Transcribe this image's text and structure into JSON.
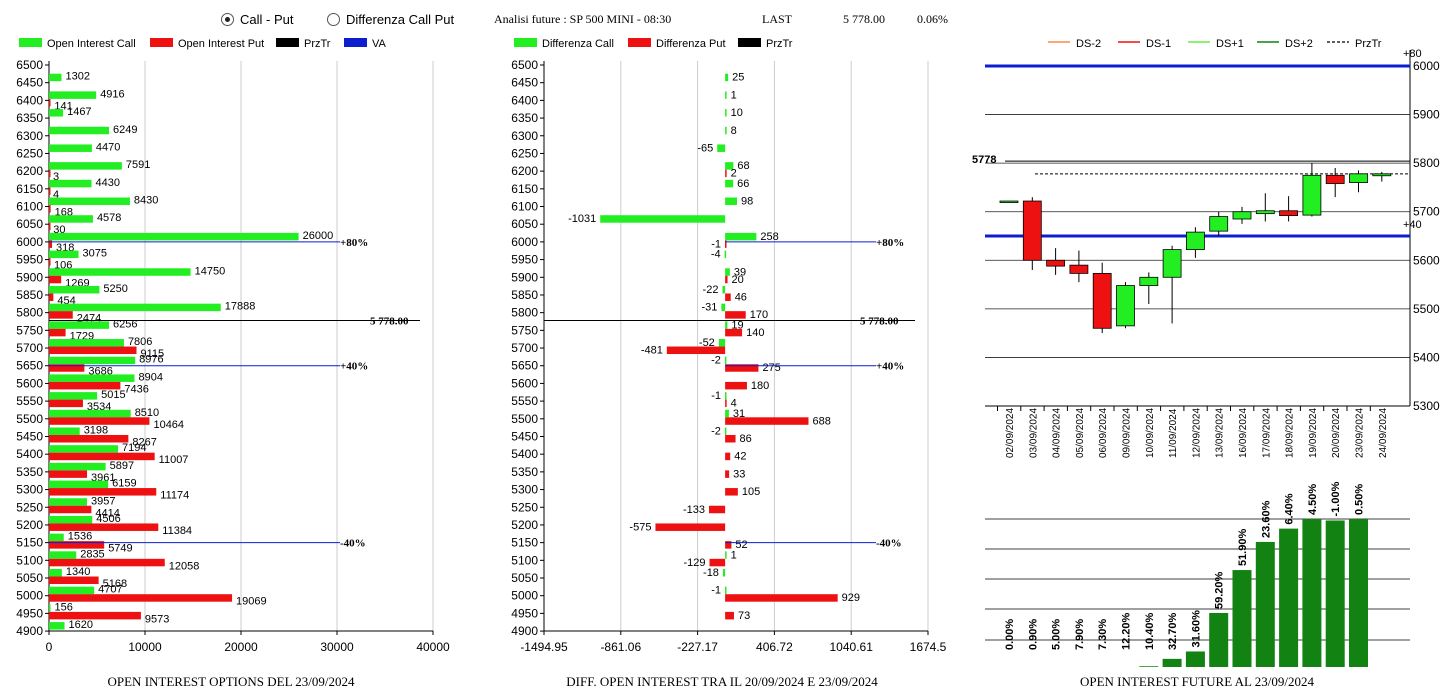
{
  "controls": {
    "radio_call_put": "Call - Put",
    "radio_diff": "Differenza Call Put",
    "title": "Analisi future : SP 500 MINI - 08:30",
    "last_label": "LAST",
    "last_value": "5 778.00",
    "last_change": "0.06%"
  },
  "colors": {
    "call": "#22ee22",
    "put": "#ee1111",
    "va": "#0b1fcf",
    "future_bar": "#128212"
  },
  "strikes": [
    6500,
    6450,
    6400,
    6350,
    6300,
    6250,
    6200,
    6150,
    6100,
    6050,
    6000,
    5950,
    5900,
    5850,
    5800,
    5750,
    5700,
    5650,
    5600,
    5550,
    5500,
    5450,
    5400,
    5350,
    5300,
    5250,
    5200,
    5150,
    5100,
    5050,
    5000,
    4950,
    4900
  ],
  "chart_data": [
    {
      "type": "bar",
      "title": "OPEN INTEREST OPTIONS DEL 23/09/2024",
      "legend": [
        "Open Interest Call",
        "Open Interest Put",
        "PrzTr",
        "VA"
      ],
      "categories": [
        6500,
        6450,
        6400,
        6350,
        6300,
        6250,
        6200,
        6150,
        6100,
        6050,
        6000,
        5950,
        5900,
        5850,
        5800,
        5750,
        5700,
        5650,
        5600,
        5550,
        5500,
        5450,
        5400,
        5350,
        5300,
        5250,
        5200,
        5150,
        5100,
        5050,
        5000,
        4950,
        4900
      ],
      "series": [
        {
          "name": "Open Interest Call",
          "values": [
            null,
            1302,
            4916,
            1467,
            6249,
            4470,
            7591,
            4430,
            8430,
            4578,
            26000,
            3075,
            14750,
            5250,
            17888,
            6256,
            7806,
            8976,
            8904,
            5015,
            8510,
            3198,
            7194,
            5897,
            6159,
            3957,
            4506,
            1536,
            2835,
            1340,
            4707,
            156,
            1620
          ]
        },
        {
          "name": "Open Interest Put",
          "values": [
            null,
            null,
            141,
            null,
            null,
            null,
            3,
            4,
            168,
            30,
            318,
            106,
            1269,
            454,
            2474,
            1729,
            9115,
            3686,
            7436,
            3534,
            10464,
            8267,
            11007,
            3961,
            11174,
            4414,
            11384,
            5749,
            12058,
            5168,
            19069,
            9573,
            null
          ]
        }
      ],
      "xticks": [
        "0",
        "10000",
        "20000",
        "30000",
        "40000"
      ],
      "xlim": [
        0,
        40000
      ],
      "lines": [
        {
          "strike": 6000,
          "label": "+80%"
        },
        {
          "strike": 5778,
          "label": "5 778.00"
        },
        {
          "strike": 5650,
          "label": "+40%"
        },
        {
          "strike": 5150,
          "label": "-40%"
        }
      ]
    },
    {
      "type": "bar",
      "title": "DIFF. OPEN INTEREST TRA IL 20/09/2024 E 23/09/2024",
      "legend": [
        "Differenza Call",
        "Differenza Put",
        "PrzTr"
      ],
      "categories": [
        6500,
        6450,
        6400,
        6350,
        6300,
        6250,
        6200,
        6150,
        6100,
        6050,
        6000,
        5950,
        5900,
        5850,
        5800,
        5750,
        5700,
        5650,
        5600,
        5550,
        5500,
        5450,
        5400,
        5350,
        5300,
        5250,
        5200,
        5150,
        5100,
        5050,
        5000,
        4950,
        4900
      ],
      "series": [
        {
          "name": "Differenza Call",
          "values": [
            null,
            25,
            1,
            10,
            8,
            -65,
            68,
            66,
            98,
            -1031,
            258,
            -4,
            39,
            -22,
            -31,
            19,
            -52,
            -2,
            null,
            -1,
            31,
            -2,
            null,
            null,
            null,
            null,
            null,
            null,
            1,
            -18,
            -1,
            null,
            null
          ]
        },
        {
          "name": "Differenza Put",
          "values": [
            null,
            null,
            null,
            null,
            null,
            null,
            2,
            null,
            null,
            null,
            -1,
            null,
            20,
            46,
            170,
            140,
            -481,
            275,
            180,
            4,
            688,
            86,
            42,
            33,
            105,
            -133,
            -575,
            52,
            -129,
            null,
            929,
            73,
            null
          ]
        }
      ],
      "xticks": [
        "-1494.95",
        "-861.06",
        "-227.17",
        "406.72",
        "1040.61",
        "1674.5"
      ],
      "xlim": [
        -1494.95,
        1674.5
      ],
      "lines": [
        {
          "strike": 6000,
          "label": "+80%"
        },
        {
          "strike": 5778,
          "label": "5 778.00"
        },
        {
          "strike": 5650,
          "label": "+40%"
        },
        {
          "strike": 5150,
          "label": "-40%"
        }
      ]
    },
    {
      "type": "candlestick",
      "legend": [
        "DS-2",
        "DS-1",
        "DS+1",
        "DS+2",
        "PrzTr"
      ],
      "ylim": [
        5300,
        6000
      ],
      "yticks": [
        "6000",
        "5900",
        "5800",
        "5700",
        "5600",
        "5500",
        "5400",
        "5300"
      ],
      "right_labels": [
        "+80",
        "+40"
      ],
      "last_label": "5778",
      "dates": [
        "02/09/2024",
        "03/09/2024",
        "04/09/2024",
        "05/09/2024",
        "06/09/2024",
        "09/09/2024",
        "10/09/2024",
        "11/09/2024",
        "12/09/2024",
        "13/09/2024",
        "16/09/2024",
        "17/09/2024",
        "18/09/2024",
        "19/09/2024",
        "20/09/2024",
        "23/09/2024",
        "24/09/2024"
      ],
      "ohlc": [
        {
          "o": 5722,
          "h": 5722,
          "l": 5722,
          "c": 5722
        },
        {
          "o": 5722,
          "h": 5730,
          "l": 5580,
          "c": 5600
        },
        {
          "o": 5600,
          "h": 5625,
          "l": 5570,
          "c": 5588
        },
        {
          "o": 5590,
          "h": 5620,
          "l": 5555,
          "c": 5573
        },
        {
          "o": 5573,
          "h": 5595,
          "l": 5450,
          "c": 5460
        },
        {
          "o": 5465,
          "h": 5555,
          "l": 5460,
          "c": 5548
        },
        {
          "o": 5548,
          "h": 5575,
          "l": 5510,
          "c": 5565
        },
        {
          "o": 5565,
          "h": 5630,
          "l": 5470,
          "c": 5622
        },
        {
          "o": 5622,
          "h": 5668,
          "l": 5605,
          "c": 5658
        },
        {
          "o": 5660,
          "h": 5700,
          "l": 5650,
          "c": 5690
        },
        {
          "o": 5685,
          "h": 5710,
          "l": 5675,
          "c": 5700
        },
        {
          "o": 5696,
          "h": 5738,
          "l": 5680,
          "c": 5702
        },
        {
          "o": 5702,
          "h": 5732,
          "l": 5680,
          "c": 5692
        },
        {
          "o": 5693,
          "h": 5800,
          "l": 5690,
          "c": 5775
        },
        {
          "o": 5775,
          "h": 5790,
          "l": 5730,
          "c": 5758
        },
        {
          "o": 5760,
          "h": 5785,
          "l": 5740,
          "c": 5778
        },
        {
          "o": 5774,
          "h": 5782,
          "l": 5762,
          "c": 5778
        }
      ],
      "hlines": [
        {
          "value": 6000,
          "label": "+80"
        },
        {
          "value": 5650,
          "label": "+40"
        },
        {
          "value": 5778,
          "label": "5778"
        }
      ]
    },
    {
      "type": "bar",
      "title": "OPEN INTEREST FUTURE AL 23/09/2024",
      "categories": [
        "02/09/2024",
        "03/09/2024",
        "04/09/2024",
        "05/09/2024",
        "06/09/2024",
        "09/09/2024",
        "10/09/2024",
        "11/09/2024",
        "12/09/2024",
        "13/09/2024",
        "16/09/2024",
        "17/09/2024",
        "18/09/2024",
        "19/09/2024",
        "20/09/2024",
        "23/09/2024"
      ],
      "labels": [
        "0.00%",
        "0.90%",
        "5.00%",
        "7.90%",
        "7.30%",
        "12.20%",
        "10.40%",
        "32.70%",
        "31.60%",
        "59.20%",
        "51.90%",
        "23.60%",
        "6.40%",
        "4.50%",
        "-1.00%",
        "0.50%"
      ],
      "values": [
        0,
        0,
        0,
        0,
        0,
        0,
        0.5,
        5.5,
        10.5,
        36.5,
        65.5,
        84.5,
        93.5,
        100,
        99,
        100
      ]
    }
  ]
}
